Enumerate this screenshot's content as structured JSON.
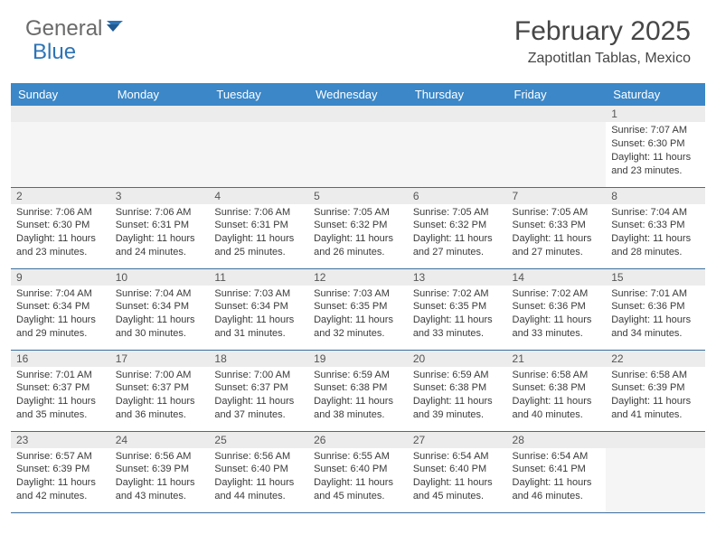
{
  "logo": {
    "text1": "General",
    "text2": "Blue"
  },
  "title": "February 2025",
  "location": "Zapotitlan Tablas, Mexico",
  "colors": {
    "header_bg": "#3b87c8",
    "header_text": "#ffffff",
    "daynum_bg": "#ececec",
    "border": "#3b6f9e",
    "logo_gray": "#6a6a6a",
    "logo_blue": "#2d74b6",
    "body_text": "#3a3a3a"
  },
  "day_names": [
    "Sunday",
    "Monday",
    "Tuesday",
    "Wednesday",
    "Thursday",
    "Friday",
    "Saturday"
  ],
  "weeks": [
    [
      {
        "empty": true
      },
      {
        "empty": true
      },
      {
        "empty": true
      },
      {
        "empty": true
      },
      {
        "empty": true
      },
      {
        "empty": true
      },
      {
        "num": "1",
        "sunrise": "Sunrise: 7:07 AM",
        "sunset": "Sunset: 6:30 PM",
        "daylight": "Daylight: 11 hours and 23 minutes."
      }
    ],
    [
      {
        "num": "2",
        "sunrise": "Sunrise: 7:06 AM",
        "sunset": "Sunset: 6:30 PM",
        "daylight": "Daylight: 11 hours and 23 minutes."
      },
      {
        "num": "3",
        "sunrise": "Sunrise: 7:06 AM",
        "sunset": "Sunset: 6:31 PM",
        "daylight": "Daylight: 11 hours and 24 minutes."
      },
      {
        "num": "4",
        "sunrise": "Sunrise: 7:06 AM",
        "sunset": "Sunset: 6:31 PM",
        "daylight": "Daylight: 11 hours and 25 minutes."
      },
      {
        "num": "5",
        "sunrise": "Sunrise: 7:05 AM",
        "sunset": "Sunset: 6:32 PM",
        "daylight": "Daylight: 11 hours and 26 minutes."
      },
      {
        "num": "6",
        "sunrise": "Sunrise: 7:05 AM",
        "sunset": "Sunset: 6:32 PM",
        "daylight": "Daylight: 11 hours and 27 minutes."
      },
      {
        "num": "7",
        "sunrise": "Sunrise: 7:05 AM",
        "sunset": "Sunset: 6:33 PM",
        "daylight": "Daylight: 11 hours and 27 minutes."
      },
      {
        "num": "8",
        "sunrise": "Sunrise: 7:04 AM",
        "sunset": "Sunset: 6:33 PM",
        "daylight": "Daylight: 11 hours and 28 minutes."
      }
    ],
    [
      {
        "num": "9",
        "sunrise": "Sunrise: 7:04 AM",
        "sunset": "Sunset: 6:34 PM",
        "daylight": "Daylight: 11 hours and 29 minutes."
      },
      {
        "num": "10",
        "sunrise": "Sunrise: 7:04 AM",
        "sunset": "Sunset: 6:34 PM",
        "daylight": "Daylight: 11 hours and 30 minutes."
      },
      {
        "num": "11",
        "sunrise": "Sunrise: 7:03 AM",
        "sunset": "Sunset: 6:34 PM",
        "daylight": "Daylight: 11 hours and 31 minutes."
      },
      {
        "num": "12",
        "sunrise": "Sunrise: 7:03 AM",
        "sunset": "Sunset: 6:35 PM",
        "daylight": "Daylight: 11 hours and 32 minutes."
      },
      {
        "num": "13",
        "sunrise": "Sunrise: 7:02 AM",
        "sunset": "Sunset: 6:35 PM",
        "daylight": "Daylight: 11 hours and 33 minutes."
      },
      {
        "num": "14",
        "sunrise": "Sunrise: 7:02 AM",
        "sunset": "Sunset: 6:36 PM",
        "daylight": "Daylight: 11 hours and 33 minutes."
      },
      {
        "num": "15",
        "sunrise": "Sunrise: 7:01 AM",
        "sunset": "Sunset: 6:36 PM",
        "daylight": "Daylight: 11 hours and 34 minutes."
      }
    ],
    [
      {
        "num": "16",
        "sunrise": "Sunrise: 7:01 AM",
        "sunset": "Sunset: 6:37 PM",
        "daylight": "Daylight: 11 hours and 35 minutes."
      },
      {
        "num": "17",
        "sunrise": "Sunrise: 7:00 AM",
        "sunset": "Sunset: 6:37 PM",
        "daylight": "Daylight: 11 hours and 36 minutes."
      },
      {
        "num": "18",
        "sunrise": "Sunrise: 7:00 AM",
        "sunset": "Sunset: 6:37 PM",
        "daylight": "Daylight: 11 hours and 37 minutes."
      },
      {
        "num": "19",
        "sunrise": "Sunrise: 6:59 AM",
        "sunset": "Sunset: 6:38 PM",
        "daylight": "Daylight: 11 hours and 38 minutes."
      },
      {
        "num": "20",
        "sunrise": "Sunrise: 6:59 AM",
        "sunset": "Sunset: 6:38 PM",
        "daylight": "Daylight: 11 hours and 39 minutes."
      },
      {
        "num": "21",
        "sunrise": "Sunrise: 6:58 AM",
        "sunset": "Sunset: 6:38 PM",
        "daylight": "Daylight: 11 hours and 40 minutes."
      },
      {
        "num": "22",
        "sunrise": "Sunrise: 6:58 AM",
        "sunset": "Sunset: 6:39 PM",
        "daylight": "Daylight: 11 hours and 41 minutes."
      }
    ],
    [
      {
        "num": "23",
        "sunrise": "Sunrise: 6:57 AM",
        "sunset": "Sunset: 6:39 PM",
        "daylight": "Daylight: 11 hours and 42 minutes."
      },
      {
        "num": "24",
        "sunrise": "Sunrise: 6:56 AM",
        "sunset": "Sunset: 6:39 PM",
        "daylight": "Daylight: 11 hours and 43 minutes."
      },
      {
        "num": "25",
        "sunrise": "Sunrise: 6:56 AM",
        "sunset": "Sunset: 6:40 PM",
        "daylight": "Daylight: 11 hours and 44 minutes."
      },
      {
        "num": "26",
        "sunrise": "Sunrise: 6:55 AM",
        "sunset": "Sunset: 6:40 PM",
        "daylight": "Daylight: 11 hours and 45 minutes."
      },
      {
        "num": "27",
        "sunrise": "Sunrise: 6:54 AM",
        "sunset": "Sunset: 6:40 PM",
        "daylight": "Daylight: 11 hours and 45 minutes."
      },
      {
        "num": "28",
        "sunrise": "Sunrise: 6:54 AM",
        "sunset": "Sunset: 6:41 PM",
        "daylight": "Daylight: 11 hours and 46 minutes."
      },
      {
        "empty": true
      }
    ]
  ]
}
